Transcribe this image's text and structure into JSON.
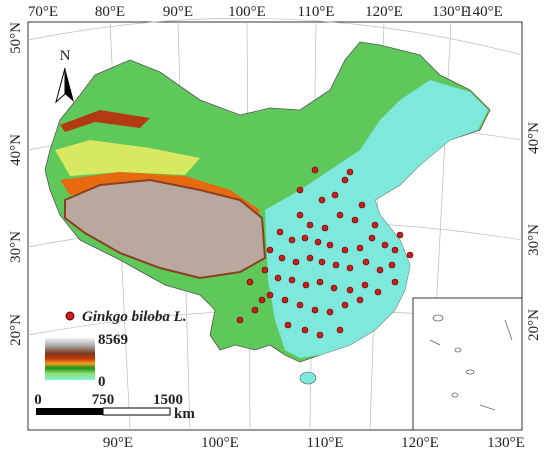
{
  "map": {
    "top_labels": [
      "70°E",
      "80°E",
      "90°E",
      "100°E",
      "110°E",
      "120°E",
      "130°E",
      "140°E"
    ],
    "bottom_labels": [
      "90°E",
      "100°E",
      "110°E",
      "120°E",
      "130°E"
    ],
    "left_labels": [
      "50°N",
      "40°N",
      "30°N",
      "20°N"
    ],
    "right_labels": [
      "40°N",
      "30°N",
      "20°N"
    ],
    "north": "N",
    "legend": {
      "species": "Ginkgo biloba L.",
      "elevation_max": 8569,
      "elevation_min": 0
    },
    "scale": {
      "ticks": [
        0,
        750,
        1500
      ],
      "unit": "km"
    }
  }
}
